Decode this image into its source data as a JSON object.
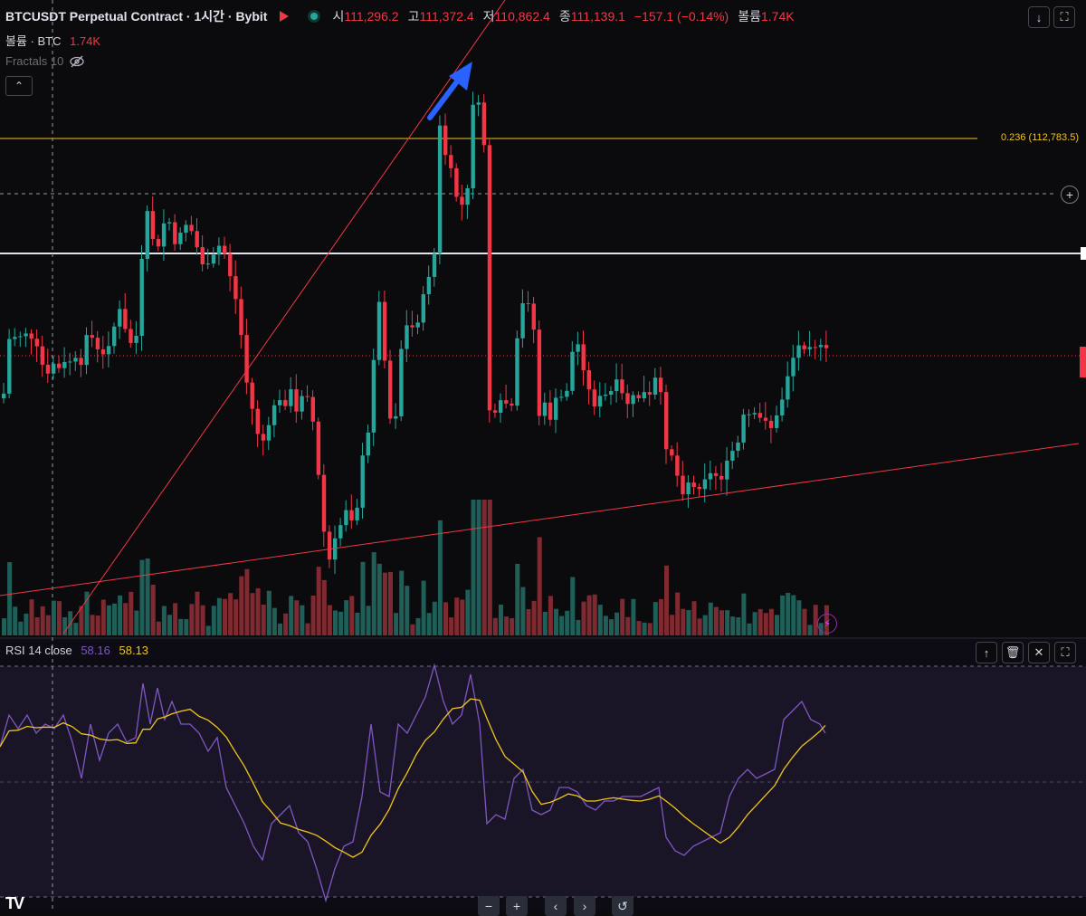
{
  "header": {
    "symbol_title": "BTCUSDT Perpetual Contract · 1시간 · Bybit",
    "ohlc": [
      {
        "label": "시",
        "value": "111,296.2"
      },
      {
        "label": "고",
        "value": "111,372.4"
      },
      {
        "label": "저",
        "value": "110,862.4"
      },
      {
        "label": "종",
        "value": "111,139.1"
      }
    ],
    "change": "−157.1 (−0.14%)",
    "volume_label": "볼륨",
    "volume_value": "1.74K"
  },
  "volume_legend": {
    "label": "볼륨 · BTC",
    "value": "1.74K"
  },
  "fractals_legend": {
    "label": "Fractals 10"
  },
  "fib_label": "0.236 (112,783.5)",
  "rsi_legend": {
    "label": "RSI 14 close",
    "rsi_value": "58.16",
    "ma_value": "58.13"
  },
  "icons": {
    "flag": "red-flag-icon",
    "status": "market-open-dot-icon",
    "hide": "eye-off-icon",
    "collapse": "chevron-up-icon",
    "down": "arrow-down-icon",
    "maximize": "maximize-icon",
    "up": "arrow-up-icon",
    "trash": "trash-icon",
    "close": "close-icon",
    "plus": "plus-circle-icon",
    "bolt": "lightning-icon",
    "zoom_out": "minus-icon",
    "zoom_in": "plus-icon",
    "scroll_left": "chevron-left-icon",
    "scroll_right": "chevron-right-icon",
    "reset": "reset-icon"
  },
  "colors": {
    "up": "#26a69a",
    "down": "#f23645",
    "rsi": "#7e57c2",
    "rsi_ma": "#f0c419",
    "fib": "#f0c419",
    "trendline": "#f23645",
    "arrow": "#2962ff",
    "background": "#0b0b0e"
  },
  "chart_data": {
    "type": "candlestick",
    "symbol": "BTCUSDT",
    "interval": "1시간",
    "exchange": "Bybit",
    "last_candle": {
      "open": 111296.2,
      "high": 111372.4,
      "low": 110862.4,
      "close": 111139.1,
      "volume": "1.74K"
    },
    "fib_levels": [
      {
        "level": 0.236,
        "price": 112783.5
      }
    ],
    "rsi": {
      "length": 14,
      "source": "close",
      "value": 58.16,
      "ma": 58.13
    }
  }
}
